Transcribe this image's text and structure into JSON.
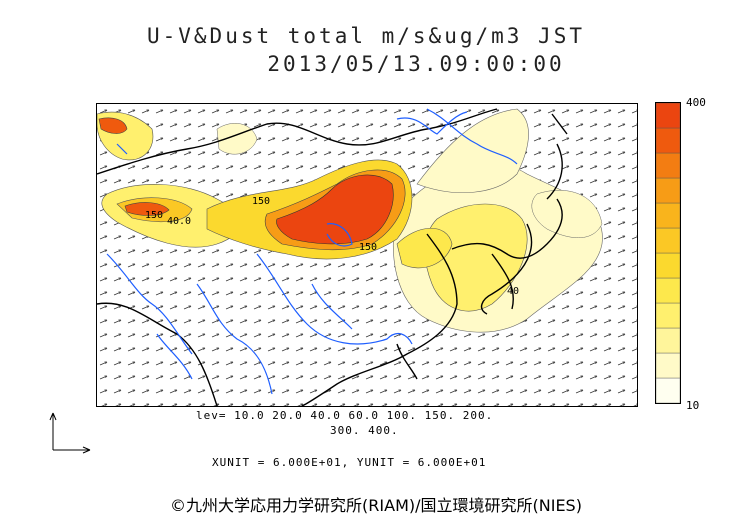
{
  "title": {
    "line1": "U-V&Dust total m/s&ug/m3 JST",
    "line2": "2013/05/13.09:00:00"
  },
  "colorbar": {
    "max_label": "400",
    "min_label": "10",
    "colors": [
      "#fffff0",
      "#fffac8",
      "#fff59b",
      "#fff06e",
      "#fde84c",
      "#fbd92e",
      "#fbc825",
      "#f9b41c",
      "#f79c16",
      "#f37d12",
      "#ef5a0e",
      "#eb4510"
    ]
  },
  "levels": {
    "line1": "lev= 10.0 20.0 40.0 60.0 100. 150. 200.",
    "line2": "300. 400."
  },
  "units": {
    "text": "XUNIT = 6.000E+01, YUNIT = 6.000E+01"
  },
  "contour_labels": [
    "150",
    "40.0",
    "150",
    "150",
    "40"
  ],
  "copyright": "©九州大学応用力学研究所(RIAM)/国立環境研究所(NIES)",
  "map": {
    "coast_color": "#000000",
    "river_color": "#1f5fff",
    "dust_color_high": "#eb4510"
  }
}
